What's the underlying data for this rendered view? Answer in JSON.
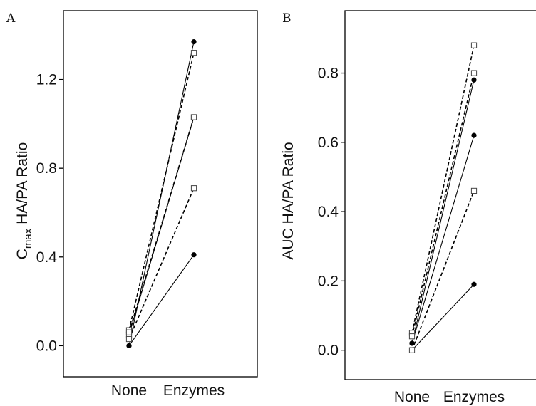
{
  "chart_data": [
    {
      "type": "line",
      "panel": "A",
      "ylabel_main": "C",
      "ylabel_sub": "max",
      "ylabel_rest": " HA/PA Ratio",
      "categories": [
        "None",
        "Enzymes"
      ],
      "yticks": [
        "0.0",
        "0.4",
        "0.8",
        "1.2"
      ],
      "ylim": [
        -0.14,
        1.51
      ],
      "series": [
        {
          "style": "solid",
          "marker": "filled-circle",
          "values": [
            0.0,
            1.37
          ]
        },
        {
          "style": "solid",
          "marker": "filled-circle",
          "values": [
            0.0,
            0.41
          ]
        },
        {
          "style": "solid",
          "marker": "open-square",
          "values": [
            0.05,
            1.03
          ]
        },
        {
          "style": "dashed",
          "marker": "open-square",
          "values": [
            0.07,
            1.32
          ]
        },
        {
          "style": "dashed",
          "marker": "open-square",
          "values": [
            0.06,
            1.03
          ]
        },
        {
          "style": "dashed",
          "marker": "open-square",
          "values": [
            0.03,
            0.71
          ]
        }
      ]
    },
    {
      "type": "line",
      "panel": "B",
      "ylabel_main": "AUC HA/PA Ratio",
      "ylabel_sub": "",
      "ylabel_rest": "",
      "categories": [
        "None",
        "Enzymes"
      ],
      "yticks": [
        "0.0",
        "0.2",
        "0.4",
        "0.6",
        "0.8"
      ],
      "ylim": [
        -0.085,
        0.98
      ],
      "series": [
        {
          "style": "solid",
          "marker": "filled-circle",
          "values": [
            0.02,
            0.78
          ]
        },
        {
          "style": "solid",
          "marker": "filled-circle",
          "values": [
            0.02,
            0.62
          ]
        },
        {
          "style": "solid",
          "marker": "filled-circle",
          "values": [
            0.0,
            0.19
          ]
        },
        {
          "style": "dashed",
          "marker": "open-square",
          "values": [
            0.05,
            0.88
          ]
        },
        {
          "style": "dashed",
          "marker": "open-square",
          "values": [
            0.04,
            0.8
          ]
        },
        {
          "style": "dashed",
          "marker": "open-square",
          "values": [
            0.0,
            0.46
          ]
        }
      ]
    }
  ]
}
